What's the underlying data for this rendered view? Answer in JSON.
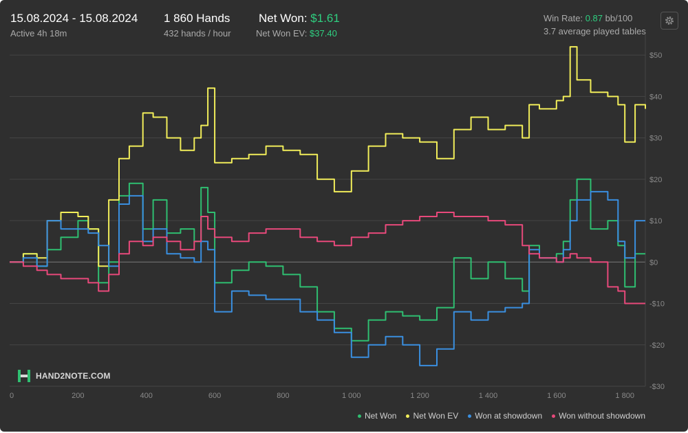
{
  "header": {
    "date_range": "15.08.2024 - 15.08.2024",
    "active_time": "Active 4h 18m",
    "hands": "1 860 Hands",
    "hands_per_hour": "432 hands / hour",
    "net_won_label": "Net Won:",
    "net_won_value": "$1.61",
    "net_won_ev_label": "Net Won  EV:",
    "net_won_ev_value": "$37.40",
    "win_rate_label": "Win Rate:",
    "win_rate_value": "0.87",
    "win_rate_unit": "bb/100",
    "tables": "3.7 average played tables"
  },
  "logo": {
    "text": "HAND2NOTE.COM",
    "icon": "hand2note-logo-icon"
  },
  "settings": {
    "icon": "gear-icon"
  },
  "colors": {
    "background": "#2f2f2f",
    "net_won": "#2fbf71",
    "net_won_ev": "#f2ee5a",
    "showdown": "#3a8fe0",
    "non_showdown": "#e8497b",
    "accent_green": "#2fcf80"
  },
  "chart_data": {
    "type": "line",
    "xlabel": "",
    "ylabel": "",
    "xlim": [
      0,
      1860
    ],
    "ylim": [
      -30,
      55
    ],
    "x_ticks": [
      0,
      200,
      400,
      600,
      800,
      1000,
      1200,
      1400,
      1600,
      1800
    ],
    "x_tick_labels": [
      "0",
      "200",
      "400",
      "600",
      "800",
      "1 000",
      "1 200",
      "1 400",
      "1 600",
      "1 800"
    ],
    "y_ticks": [
      50,
      40,
      30,
      20,
      10,
      0,
      -10,
      -20,
      -30
    ],
    "y_tick_labels": [
      "$50",
      "$40",
      "$30",
      "$20",
      "$10",
      "$0",
      "-$10",
      "-$20",
      "-$30"
    ],
    "grid": true,
    "legend_position": "bottom-right",
    "x": [
      0,
      40,
      80,
      110,
      150,
      200,
      230,
      260,
      290,
      320,
      350,
      390,
      420,
      460,
      500,
      540,
      560,
      580,
      600,
      650,
      700,
      750,
      800,
      850,
      900,
      950,
      1000,
      1050,
      1100,
      1150,
      1200,
      1250,
      1300,
      1350,
      1400,
      1450,
      1500,
      1520,
      1550,
      1600,
      1620,
      1640,
      1660,
      1700,
      1750,
      1780,
      1800,
      1830,
      1860
    ],
    "series": [
      {
        "name": "Net Won",
        "color": "#2fbf71",
        "values": [
          0,
          2,
          -1,
          3,
          6,
          10,
          8,
          -5,
          0,
          16,
          19,
          8,
          15,
          7,
          8,
          5,
          18,
          12,
          -5,
          -2,
          0,
          -1,
          -3,
          -6,
          -12,
          -16,
          -19,
          -14,
          -12,
          -13,
          -14,
          -11,
          1,
          -4,
          0,
          -4,
          -7,
          4,
          1,
          2,
          5,
          15,
          20,
          8,
          10,
          4,
          -6,
          2,
          2
        ]
      },
      {
        "name": "Net Won  EV",
        "color": "#f2ee5a",
        "values": [
          0,
          2,
          1,
          10,
          12,
          11,
          8,
          -1,
          15,
          25,
          28,
          36,
          35,
          30,
          27,
          30,
          33,
          42,
          24,
          25,
          26,
          28,
          27,
          26,
          20,
          17,
          22,
          28,
          31,
          30,
          29,
          25,
          32,
          35,
          32,
          33,
          30,
          38,
          37,
          39,
          40,
          52,
          44,
          41,
          40,
          38,
          29,
          38,
          37
        ]
      },
      {
        "name": "Won at showdown",
        "color": "#3a8fe0",
        "values": [
          0,
          1,
          -1,
          10,
          8,
          8,
          7,
          4,
          -1,
          14,
          16,
          5,
          8,
          2,
          1,
          0,
          5,
          3,
          -12,
          -7,
          -8,
          -9,
          -9,
          -12,
          -14,
          -17,
          -23,
          -20,
          -18,
          -20,
          -25,
          -21,
          -12,
          -14,
          -12,
          -11,
          -10,
          3,
          1,
          0,
          3,
          10,
          15,
          17,
          15,
          5,
          1,
          10,
          10
        ]
      },
      {
        "name": "Won without showdown",
        "color": "#e8497b",
        "values": [
          0,
          -1,
          -2,
          -3,
          -4,
          -4,
          -5,
          -7,
          -3,
          2,
          5,
          4,
          6,
          5,
          3,
          5,
          11,
          8,
          6,
          5,
          7,
          8,
          8,
          6,
          5,
          4,
          6,
          7,
          9,
          10,
          11,
          12,
          11,
          11,
          10,
          9,
          4,
          2,
          1,
          0,
          1,
          2,
          1,
          0,
          -6,
          -7,
          -10,
          -10,
          -10
        ]
      }
    ]
  }
}
